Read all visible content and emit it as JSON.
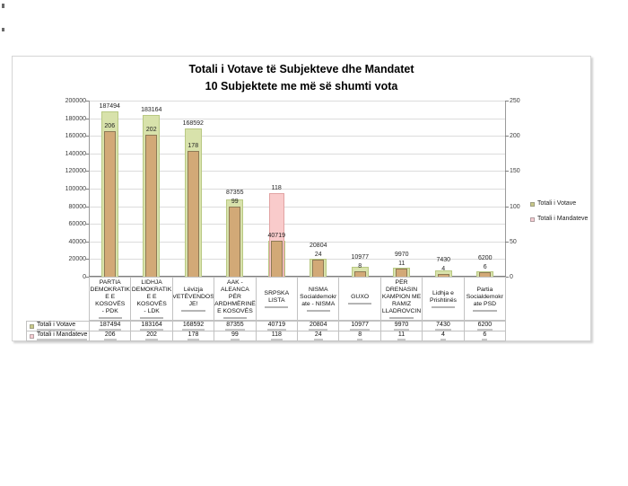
{
  "title": {
    "line1": "Totali i Votave të Subjekteve dhe Mandatet",
    "line2": "10 Subjektete me më së shumti vota"
  },
  "legend": {
    "items": [
      {
        "label": "Totali i Votave",
        "swatch_color": "#c9c98a"
      },
      {
        "label": "Totali i Mandateve",
        "swatch_color": "#f6cdd3"
      }
    ]
  },
  "colors": {
    "votes_bar_fill": "#d8e2ab",
    "votes_bar_border": "#b9c983",
    "overlap_bar_fill": "#d2a977",
    "overlap_bar_border": "#8e7a56",
    "mandates_highlight_fill": "#f9cbcb",
    "mandates_highlight_border": "#e2a3a3",
    "gridline": "#dcdcdc"
  },
  "chart_data": {
    "type": "bar",
    "title": "Totali i Votave të Subjekteve dhe Mandatet",
    "subtitle": "10 Subjektete me më së shumti vota",
    "grid": true,
    "legend_position": "right",
    "highlight_index": 4,
    "left_axis": {
      "min": 0,
      "max": 200000,
      "step": 20000
    },
    "right_axis": {
      "min": 0,
      "max": 250,
      "step": 50
    },
    "categories": [
      "PARTIA DEMOKRATIKE E KOSOVËS - PDK",
      "LIDHJA DEMOKRATIKE E KOSOVËS - LDK",
      "Lëvizja VETËVENDOSJE!",
      "AAK - ALEANCA PËR ARDHMËRINË E KOSOVËS",
      "SRPSKA LISTA",
      "NISMA Socialdemokrate - NISMA",
      "GUXO",
      "PËR DRENASIN KAMPION ME RAMIZ LLADROVCIN",
      "Lidhja e Prishtinës",
      "Partia Socialdemokrate PSD"
    ],
    "category_label_lines": [
      [
        "PARTIA",
        "DEMOKRATIK",
        "E E KOSOVËS",
        "- PDK"
      ],
      [
        "LIDHJA",
        "DEMOKRATIK",
        "E E KOSOVËS",
        "- LDK"
      ],
      [
        "Lëvizja",
        "VETËVENDOS",
        "JE!"
      ],
      [
        "AAK -",
        "ALEANCA PËR",
        "ARDHMËRINË",
        "E KOSOVËS"
      ],
      [
        "SRPSKA LISTA"
      ],
      [
        "NISMA",
        "Socialdemokr",
        "ate - NISMA"
      ],
      [
        "GUXO"
      ],
      [
        "PËR",
        "DRENASIN",
        "KAMPION ME",
        "RAMIZ",
        "LLADROVCIN"
      ],
      [
        "Lidhja e",
        "Prishtinës"
      ],
      [
        "Partia",
        "Socialdemokr",
        "ate PSD"
      ]
    ],
    "series": [
      {
        "name": "Totali i Votave",
        "values": [
          187494,
          183164,
          168592,
          87355,
          40719,
          20804,
          10977,
          9970,
          7430,
          6200
        ]
      },
      {
        "name": "Totali i Mandateve",
        "values": [
          206,
          202,
          178,
          99,
          118,
          24,
          8,
          11,
          4,
          6
        ]
      }
    ]
  }
}
